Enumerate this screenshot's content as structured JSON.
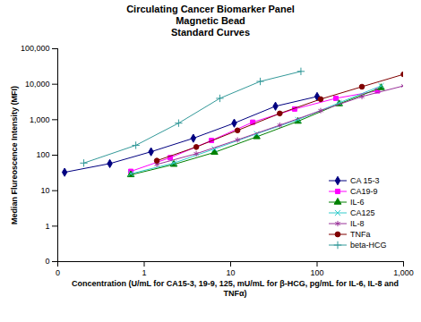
{
  "chart_data": {
    "type": "line",
    "title": "Circulating Cancer Biomarker Panel\nMagnetic Bead\nStandard Curves",
    "x_label": "Concentration (U/mL for CA15-3, 19-9, 125, mU/mL for β-HCG, pg/mL for IL-6, IL-8 and TNFα)",
    "y_label": "Median Flureoscence Intensity (MFI)",
    "log": true,
    "grid": false,
    "legend": "lower right",
    "xlim": [
      0.1,
      1000
    ],
    "xticks": [
      {
        "value": 0.1,
        "label": "0"
      },
      1,
      10,
      100,
      {
        "value": 1000,
        "label": "1,000"
      }
    ],
    "ylim": [
      0.1,
      100000
    ],
    "yticks": [
      {
        "value": 0.1,
        "label": "0"
      },
      1,
      10,
      100,
      {
        "value": 1000,
        "label": "1,000"
      },
      {
        "value": 10000,
        "label": "10,000"
      },
      {
        "value": 100000,
        "label": "100,000"
      }
    ],
    "series": [
      {
        "name": "CA 15-3",
        "color": "#000080",
        "marker": "diamond",
        "x": [
          0.12,
          0.4,
          1.2,
          3.7,
          11,
          33,
          100
        ],
        "values": [
          33,
          58,
          125,
          300,
          800,
          2400,
          4500
        ]
      },
      {
        "name": "CA19-9",
        "color": "#ff00ff",
        "marker": "square",
        "x": [
          0.7,
          2,
          6,
          18,
          55,
          165,
          500
        ],
        "values": [
          35,
          85,
          260,
          850,
          2000,
          4000,
          6500
        ]
      },
      {
        "name": "IL-6",
        "color": "#008000",
        "marker": "triangle",
        "x": [
          0.7,
          2.2,
          6.5,
          20,
          60,
          180,
          550
        ],
        "values": [
          28,
          55,
          120,
          330,
          900,
          2800,
          8000
        ]
      },
      {
        "name": "CA125",
        "color": "#33cccc",
        "marker": "times",
        "x": [
          0.7,
          2.2,
          6.5,
          20,
          60,
          180,
          550
        ],
        "values": [
          30,
          60,
          150,
          400,
          1000,
          3000,
          9000
        ]
      },
      {
        "name": "IL-8",
        "color": "#993399",
        "marker": "asterisk",
        "x": [
          1.4,
          4,
          12,
          37,
          110,
          330,
          1000
        ],
        "values": [
          55,
          110,
          270,
          700,
          1800,
          4500,
          9000
        ]
      },
      {
        "name": "TNFa",
        "color": "#800000",
        "marker": "circle",
        "x": [
          1.4,
          4,
          12,
          37,
          110,
          330,
          1000
        ],
        "values": [
          70,
          170,
          500,
          1500,
          3800,
          8500,
          19000
        ]
      },
      {
        "name": "beta-HCG",
        "color": "#339999",
        "marker": "plus",
        "x": [
          0.2,
          0.8,
          2.5,
          7.5,
          22,
          65
        ],
        "values": [
          60,
          190,
          800,
          4000,
          12000,
          23000
        ]
      }
    ]
  }
}
